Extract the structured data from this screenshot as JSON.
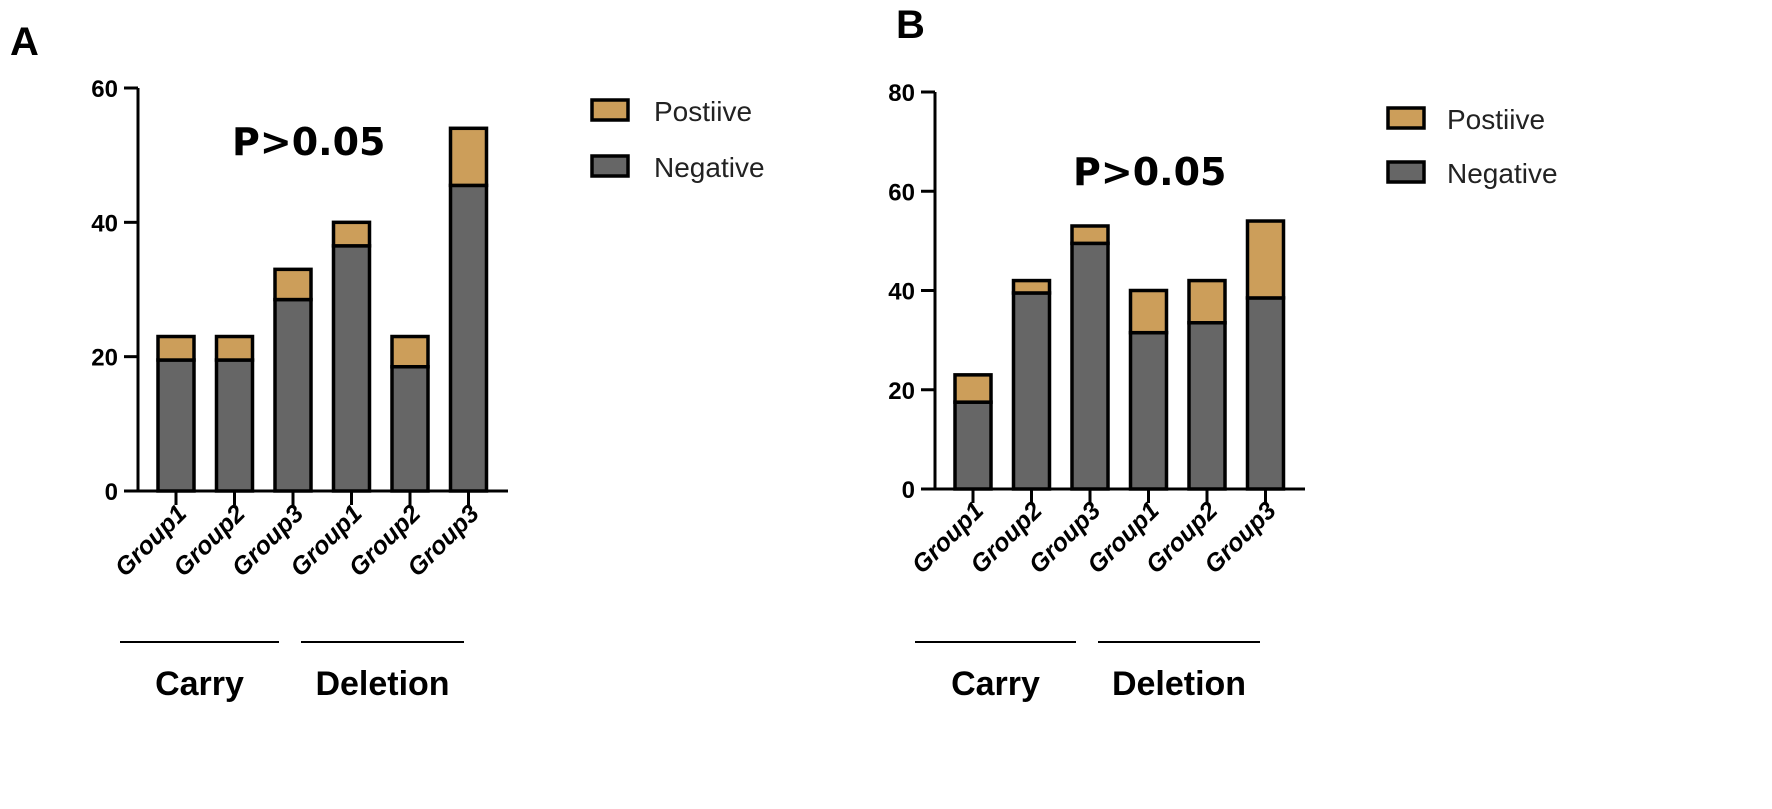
{
  "colors": {
    "positive": "#CC9E5A",
    "negative": "#666666",
    "outline": "#000000"
  },
  "chart_data": [
    {
      "type": "bar",
      "stacked": true,
      "panel_label": "A",
      "annotation": "P>0.05",
      "categories": [
        "Group1",
        "Group2",
        "Group3",
        "Group1",
        "Group2",
        "Group3"
      ],
      "category_groups": [
        {
          "label": "Carry",
          "from": 0,
          "to": 2
        },
        {
          "label": "Deletion",
          "from": 3,
          "to": 5
        }
      ],
      "series": [
        {
          "name": "Negative",
          "values": [
            19.5,
            19.5,
            28.5,
            36.5,
            18.5,
            45.5
          ]
        },
        {
          "name": "Postiive",
          "values": [
            3.5,
            3.5,
            4.5,
            3.5,
            4.5,
            8.5
          ]
        }
      ],
      "legend": [
        "Postiive",
        "Negative"
      ],
      "ylim": [
        0,
        60
      ],
      "yticks": [
        0,
        20,
        40,
        60
      ],
      "title": "",
      "xlabel": "",
      "ylabel": ""
    },
    {
      "type": "bar",
      "stacked": true,
      "panel_label": "B",
      "annotation": "P>0.05",
      "categories": [
        "Group1",
        "Group2",
        "Group3",
        "Group1",
        "Group2",
        "Group3"
      ],
      "category_groups": [
        {
          "label": "Carry",
          "from": 0,
          "to": 2
        },
        {
          "label": "Deletion",
          "from": 3,
          "to": 5
        }
      ],
      "series": [
        {
          "name": "Negative",
          "values": [
            17.5,
            39.5,
            49.5,
            31.5,
            33.5,
            38.5
          ]
        },
        {
          "name": "Postiive",
          "values": [
            5.5,
            2.5,
            3.5,
            8.5,
            8.5,
            15.5
          ]
        }
      ],
      "legend": [
        "Postiive",
        "Negative"
      ],
      "ylim": [
        0,
        80
      ],
      "yticks": [
        0,
        20,
        40,
        60,
        80
      ],
      "title": "",
      "xlabel": "",
      "ylabel": ""
    }
  ]
}
